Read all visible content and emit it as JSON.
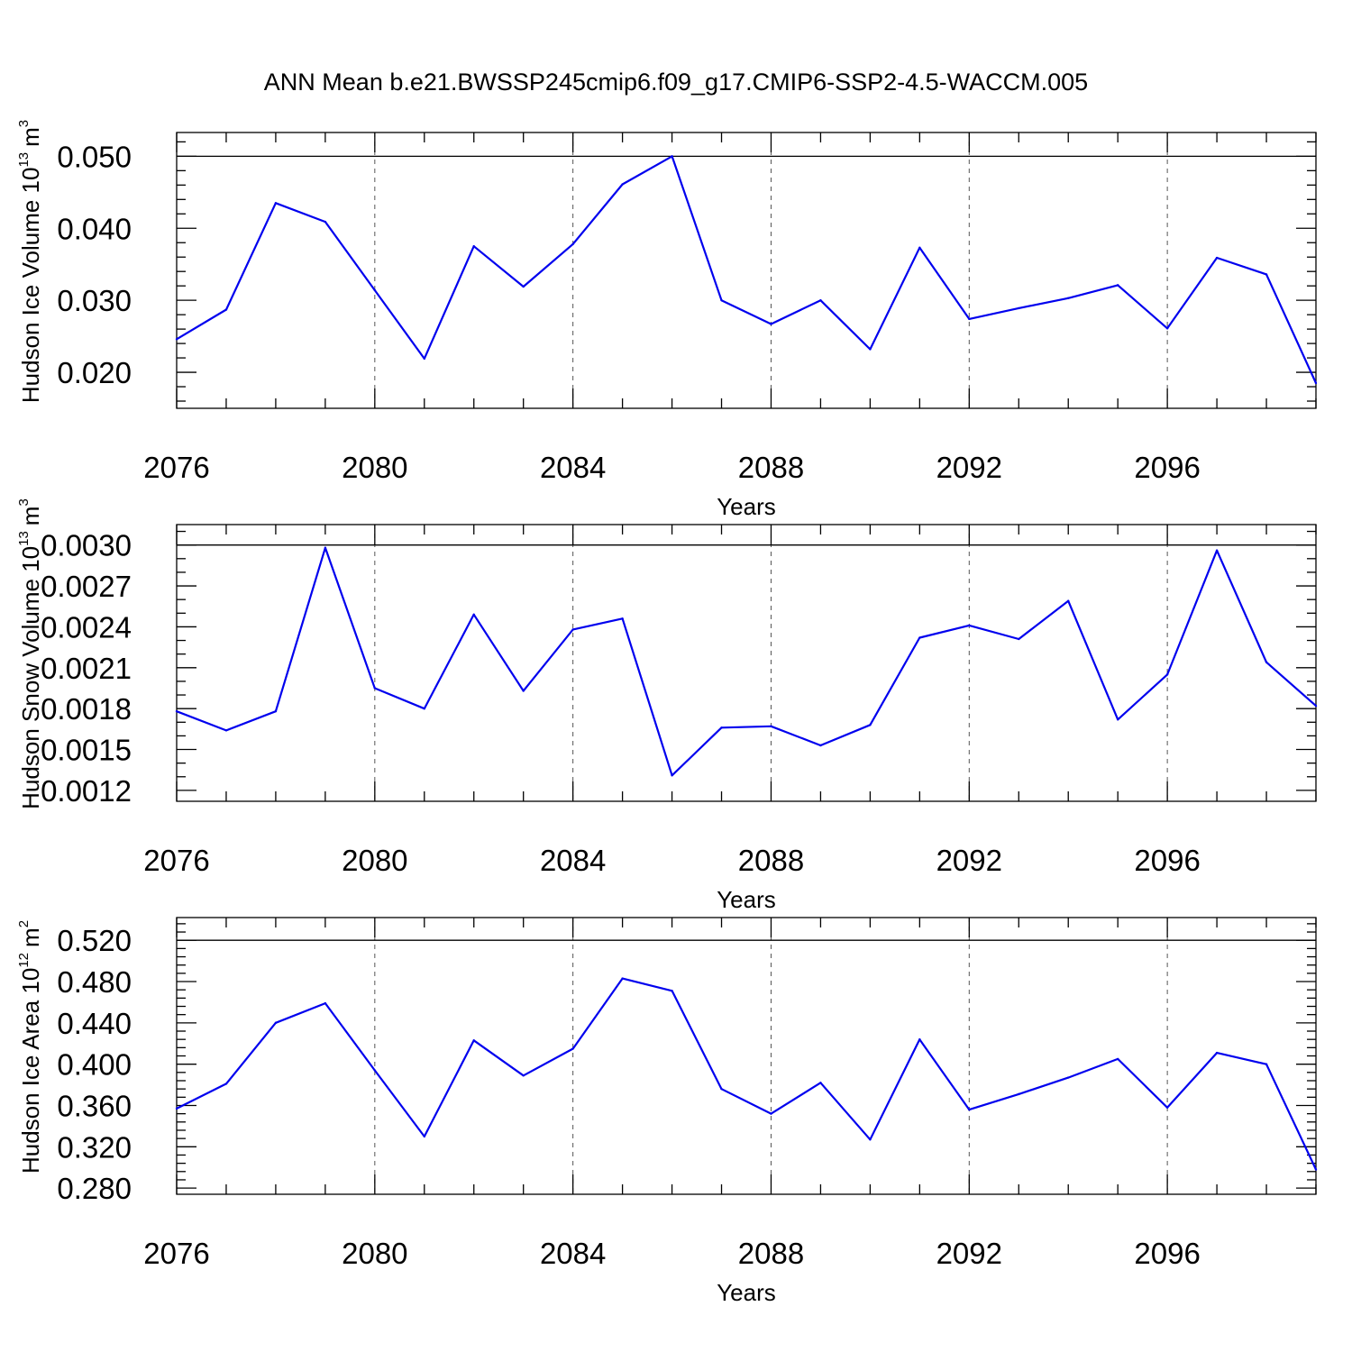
{
  "title": "ANN Mean b.e21.BWSSP245cmip6.f09_g17.CMIP6-SSP2-4.5-WACCM.005",
  "colors": {
    "line": "#0000ee",
    "axis": "#000000",
    "grid": "#555555"
  },
  "chart_data": [
    {
      "type": "line",
      "ylabel_base": "Hudson Ice Volume 10",
      "ylabel_exp": "13",
      "ylabel_unit": "m",
      "ylabel_unit_exp": "3",
      "xlabel": "Years",
      "xlim": [
        2076,
        2099
      ],
      "ylim": [
        0.015,
        0.0533
      ],
      "x_ticks": [
        2076,
        2080,
        2084,
        2088,
        2092,
        2096
      ],
      "x_tick_labels": [
        "2076",
        "2080",
        "2084",
        "2088",
        "2092",
        "2096"
      ],
      "y_ticks": [
        0.02,
        0.03,
        0.04,
        0.05
      ],
      "y_tick_labels": [
        "0.020",
        "0.030",
        "0.040",
        "0.050"
      ],
      "y_minor_step": 0.002,
      "grid": "vertical dashed at major x ticks",
      "x": [
        2076,
        2077,
        2078,
        2079,
        2080,
        2081,
        2082,
        2083,
        2084,
        2085,
        2086,
        2087,
        2088,
        2089,
        2090,
        2091,
        2092,
        2093,
        2094,
        2095,
        2096,
        2097,
        2098,
        2099
      ],
      "values": [
        0.0246,
        0.0287,
        0.0435,
        0.0409,
        0.0314,
        0.0219,
        0.0375,
        0.0319,
        0.0378,
        0.0461,
        0.05,
        0.03,
        0.0267,
        0.03,
        0.0232,
        0.0373,
        0.0274,
        0.0289,
        0.0303,
        0.0321,
        0.0261,
        0.0359,
        0.0336,
        0.0185
      ]
    },
    {
      "type": "line",
      "ylabel_base": "Hudson Snow Volume 10",
      "ylabel_exp": "13",
      "ylabel_unit": "m",
      "ylabel_unit_exp": "3",
      "xlabel": "Years",
      "xlim": [
        2076,
        2099
      ],
      "ylim": [
        0.00112,
        0.00315
      ],
      "x_ticks": [
        2076,
        2080,
        2084,
        2088,
        2092,
        2096
      ],
      "x_tick_labels": [
        "2076",
        "2080",
        "2084",
        "2088",
        "2092",
        "2096"
      ],
      "y_ticks": [
        0.0012,
        0.0015,
        0.0018,
        0.0021,
        0.0024,
        0.0027,
        0.003
      ],
      "y_tick_labels": [
        "0.0012",
        "0.0015",
        "0.0018",
        "0.0021",
        "0.0024",
        "0.0027",
        "0.0030"
      ],
      "y_minor_step": 0.0001,
      "grid": "vertical dashed at major x ticks",
      "x": [
        2076,
        2077,
        2078,
        2079,
        2080,
        2081,
        2082,
        2083,
        2084,
        2085,
        2086,
        2087,
        2088,
        2089,
        2090,
        2091,
        2092,
        2093,
        2094,
        2095,
        2096,
        2097,
        2098,
        2099
      ],
      "values": [
        0.00178,
        0.00164,
        0.00178,
        0.00298,
        0.00195,
        0.0018,
        0.00249,
        0.00193,
        0.00238,
        0.00246,
        0.00131,
        0.00166,
        0.00167,
        0.00153,
        0.00168,
        0.00232,
        0.00241,
        0.00231,
        0.00259,
        0.00172,
        0.00205,
        0.00296,
        0.00214,
        0.00182
      ]
    },
    {
      "type": "line",
      "ylabel_base": "Hudson Ice Area 10",
      "ylabel_exp": "12",
      "ylabel_unit": "m",
      "ylabel_unit_exp": "2",
      "xlabel": "Years",
      "xlim": [
        2076,
        2099
      ],
      "ylim": [
        0.274,
        0.542
      ],
      "x_ticks": [
        2076,
        2080,
        2084,
        2088,
        2092,
        2096
      ],
      "x_tick_labels": [
        "2076",
        "2080",
        "2084",
        "2088",
        "2092",
        "2096"
      ],
      "y_ticks": [
        0.28,
        0.32,
        0.36,
        0.4,
        0.44,
        0.48,
        0.52
      ],
      "y_tick_labels": [
        "0.280",
        "0.320",
        "0.360",
        "0.400",
        "0.440",
        "0.480",
        "0.520"
      ],
      "y_minor_step": 0.008,
      "grid": "vertical dashed at major x ticks",
      "x": [
        2076,
        2077,
        2078,
        2079,
        2080,
        2081,
        2082,
        2083,
        2084,
        2085,
        2086,
        2087,
        2088,
        2089,
        2090,
        2091,
        2092,
        2093,
        2094,
        2095,
        2096,
        2097,
        2098,
        2099
      ],
      "values": [
        0.357,
        0.381,
        0.44,
        0.459,
        0.394,
        0.33,
        0.423,
        0.389,
        0.415,
        0.483,
        0.471,
        0.376,
        0.352,
        0.382,
        0.327,
        0.424,
        0.356,
        0.371,
        0.387,
        0.405,
        0.358,
        0.411,
        0.4,
        0.298
      ]
    }
  ]
}
